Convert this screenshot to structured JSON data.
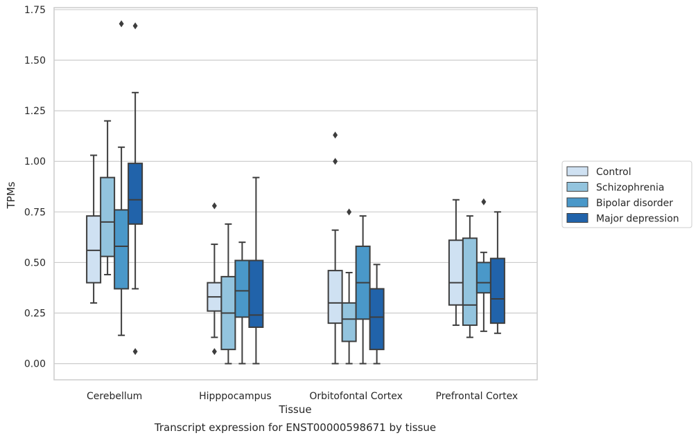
{
  "chart_data": {
    "type": "box",
    "title": "",
    "caption": "Transcript expression for ENST00000598671 by tissue",
    "xlabel": "Tissue",
    "ylabel": "TPMs",
    "ylim": [
      -0.08,
      1.76
    ],
    "yticks": [
      "0.00",
      "0.25",
      "0.50",
      "0.75",
      "1.00",
      "1.25",
      "1.50",
      "1.75"
    ],
    "grid": "horizontal",
    "legend_position": "right",
    "categories": [
      "Cerebellum",
      "Hipppocampus",
      "Orbitofontal Cortex",
      "Prefrontal Cortex"
    ],
    "series": [
      {
        "name": "Control",
        "color": "#cfe1f2",
        "boxes": [
          {
            "whisker_low": 0.3,
            "q1": 0.4,
            "median": 0.56,
            "q3": 0.73,
            "whisker_high": 1.03,
            "outliers": []
          },
          {
            "whisker_low": 0.13,
            "q1": 0.26,
            "median": 0.33,
            "q3": 0.4,
            "whisker_high": 0.59,
            "outliers": [
              0.06,
              0.78
            ]
          },
          {
            "whisker_low": 0.0,
            "q1": 0.2,
            "median": 0.3,
            "q3": 0.46,
            "whisker_high": 0.66,
            "outliers": [
              1.0,
              1.13
            ]
          },
          {
            "whisker_low": 0.19,
            "q1": 0.29,
            "median": 0.4,
            "q3": 0.61,
            "whisker_high": 0.81,
            "outliers": []
          }
        ]
      },
      {
        "name": "Schizophrenia",
        "color": "#93c4de",
        "boxes": [
          {
            "whisker_low": 0.44,
            "q1": 0.53,
            "median": 0.7,
            "q3": 0.92,
            "whisker_high": 1.2,
            "outliers": []
          },
          {
            "whisker_low": 0.0,
            "q1": 0.07,
            "median": 0.25,
            "q3": 0.43,
            "whisker_high": 0.69,
            "outliers": []
          },
          {
            "whisker_low": 0.0,
            "q1": 0.11,
            "median": 0.22,
            "q3": 0.3,
            "whisker_high": 0.45,
            "outliers": [
              0.75
            ]
          },
          {
            "whisker_low": 0.13,
            "q1": 0.19,
            "median": 0.29,
            "q3": 0.62,
            "whisker_high": 0.73,
            "outliers": []
          }
        ]
      },
      {
        "name": "Bipolar disorder",
        "color": "#4a98c9",
        "boxes": [
          {
            "whisker_low": 0.14,
            "q1": 0.37,
            "median": 0.58,
            "q3": 0.76,
            "whisker_high": 1.07,
            "outliers": [
              1.68
            ]
          },
          {
            "whisker_low": 0.0,
            "q1": 0.23,
            "median": 0.36,
            "q3": 0.51,
            "whisker_high": 0.6,
            "outliers": []
          },
          {
            "whisker_low": 0.0,
            "q1": 0.22,
            "median": 0.4,
            "q3": 0.58,
            "whisker_high": 0.73,
            "outliers": []
          },
          {
            "whisker_low": 0.16,
            "q1": 0.35,
            "median": 0.4,
            "q3": 0.5,
            "whisker_high": 0.55,
            "outliers": [
              0.8
            ]
          }
        ]
      },
      {
        "name": "Major depression",
        "color": "#2163aa",
        "boxes": [
          {
            "whisker_low": 0.37,
            "q1": 0.69,
            "median": 0.81,
            "q3": 0.99,
            "whisker_high": 1.34,
            "outliers": [
              0.06,
              1.67
            ]
          },
          {
            "whisker_low": 0.0,
            "q1": 0.18,
            "median": 0.24,
            "q3": 0.51,
            "whisker_high": 0.92,
            "outliers": []
          },
          {
            "whisker_low": 0.0,
            "q1": 0.07,
            "median": 0.23,
            "q3": 0.37,
            "whisker_high": 0.49,
            "outliers": []
          },
          {
            "whisker_low": 0.15,
            "q1": 0.2,
            "median": 0.32,
            "q3": 0.52,
            "whisker_high": 0.75,
            "outliers": []
          }
        ]
      }
    ]
  }
}
